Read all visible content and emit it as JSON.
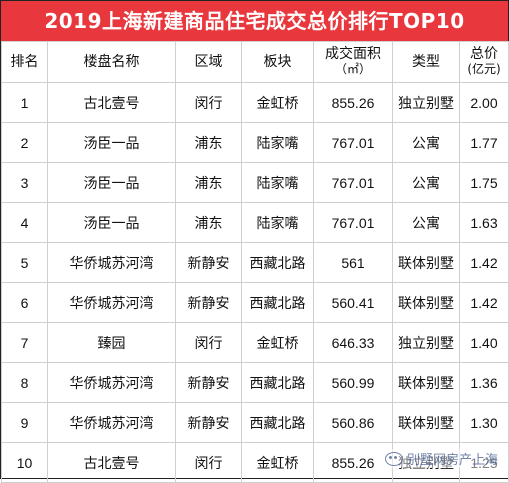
{
  "title": "2019上海新建商品住宅成交总价排行TOP10",
  "headers": {
    "rank": "排名",
    "name": "楼盘名称",
    "district": "区域",
    "block": "板块",
    "area": "成交面积",
    "area_unit": "（㎡）",
    "type": "类型",
    "price": "总价",
    "price_unit": "(亿元)"
  },
  "rows": [
    {
      "rank": "1",
      "name": "古北壹号",
      "district": "闵行",
      "block": "金虹桥",
      "area": "855.26",
      "type": "独立别墅",
      "price": "2.00"
    },
    {
      "rank": "2",
      "name": "汤臣一品",
      "district": "浦东",
      "block": "陆家嘴",
      "area": "767.01",
      "type": "公寓",
      "price": "1.77"
    },
    {
      "rank": "3",
      "name": "汤臣一品",
      "district": "浦东",
      "block": "陆家嘴",
      "area": "767.01",
      "type": "公寓",
      "price": "1.75"
    },
    {
      "rank": "4",
      "name": "汤臣一品",
      "district": "浦东",
      "block": "陆家嘴",
      "area": "767.01",
      "type": "公寓",
      "price": "1.63"
    },
    {
      "rank": "5",
      "name": "华侨城苏河湾",
      "district": "新静安",
      "block": "西藏北路",
      "area": "561",
      "type": "联体别墅",
      "price": "1.42"
    },
    {
      "rank": "6",
      "name": "华侨城苏河湾",
      "district": "新静安",
      "block": "西藏北路",
      "area": "560.41",
      "type": "联体别墅",
      "price": "1.42"
    },
    {
      "rank": "7",
      "name": "臻园",
      "district": "闵行",
      "block": "金虹桥",
      "area": "646.33",
      "type": "独立别墅",
      "price": "1.40"
    },
    {
      "rank": "8",
      "name": "华侨城苏河湾",
      "district": "新静安",
      "block": "西藏北路",
      "area": "560.99",
      "type": "联体别墅",
      "price": "1.36"
    },
    {
      "rank": "9",
      "name": "华侨城苏河湾",
      "district": "新静安",
      "block": "西藏北路",
      "area": "560.86",
      "type": "联体别墅",
      "price": "1.30"
    },
    {
      "rank": "10",
      "name": "古北壹号",
      "district": "闵行",
      "block": "金虹桥",
      "area": "855.26",
      "type": "独立别墅",
      "price": "1.25"
    }
  ],
  "watermark": "别墅网房产上海",
  "watermark_icon": "wechat-icon",
  "colors": {
    "title_bg": "#e8383d",
    "title_text": "#ffffff",
    "grid": "#cfcfcf"
  }
}
